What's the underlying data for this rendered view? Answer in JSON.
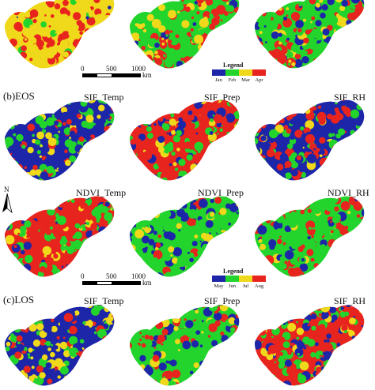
{
  "palette_spring": {
    "c1": "#1d26a8",
    "c2": "#22d42c",
    "c3": "#f0d81a",
    "c4": "#e8241e"
  },
  "palette_autumn": {
    "c1": "#1d26a8",
    "c2": "#22d42c",
    "c3": "#f0d81a",
    "c4": "#e8241e"
  },
  "panels": {
    "eos": {
      "label": "(b)EOS"
    },
    "los": {
      "label": "(c)LOS"
    }
  },
  "titles": {
    "r2c1": "SIF_Temp",
    "r2c2": "SIF_Prep",
    "r2c3": "SIF_RH",
    "r3c1": "NDVI_Temp",
    "r3c2": "NDVI_Prep",
    "r3c3": "NDVI_RH",
    "r4c1": "SIF_Temp",
    "r4c2": "SIF_Prep",
    "r4c3": "SIF_RH"
  },
  "scale": {
    "ticks": [
      "0",
      "500",
      "1000"
    ],
    "unit": "km"
  },
  "legend1": {
    "title": "Legend",
    "labels": [
      "Jan",
      "Feb",
      "Mar",
      "Apr"
    ]
  },
  "legend2": {
    "title": "Legend",
    "labels": [
      "May",
      "Jun",
      "Jul",
      "Aug"
    ]
  },
  "north": {
    "letter": "N"
  }
}
